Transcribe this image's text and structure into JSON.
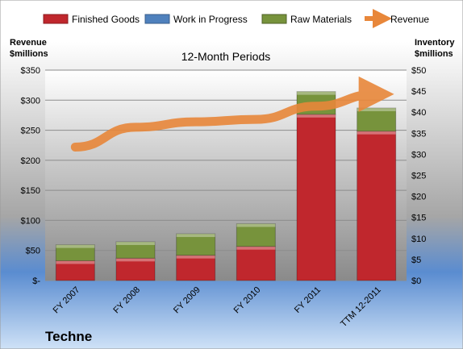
{
  "chart_data": {
    "type": "bar",
    "subtitle": "12-Month Periods",
    "company": "Techne",
    "left_axis_title": [
      "Revenue",
      "$millions"
    ],
    "right_axis_title": [
      "Inventory",
      "$millions"
    ],
    "categories": [
      "FY 2007",
      "FY 2008",
      "FY 2009",
      "FY 2010",
      "FY 2011",
      "TTM 12-2011"
    ],
    "left_ticks": [
      "$-",
      "$50",
      "$100",
      "$150",
      "$200",
      "$250",
      "$300",
      "$350"
    ],
    "right_ticks": [
      "$0",
      "$5",
      "$10",
      "$15",
      "$20",
      "$25",
      "$30",
      "$35",
      "$40",
      "$45",
      "$50"
    ],
    "left_ylim": [
      0,
      350
    ],
    "right_ylim": [
      0,
      50
    ],
    "legend_position": "top",
    "series": [
      {
        "name": "Finished Goods",
        "axis": "right",
        "kind": "stacked-bar",
        "color": "#c0272d",
        "values": [
          4.7,
          5.3,
          6.0,
          8.1,
          39.5,
          35.5
        ]
      },
      {
        "name": "Work in Progress",
        "axis": "right",
        "kind": "stacked-bar",
        "color": "#4f81bd",
        "values": [
          0,
          0,
          0,
          0,
          0,
          0
        ]
      },
      {
        "name": "Raw Materials",
        "axis": "right",
        "kind": "stacked-bar",
        "color": "#77933c",
        "values": [
          3.8,
          3.9,
          5.1,
          5.4,
          5.4,
          5.5
        ]
      },
      {
        "name": "Revenue",
        "axis": "left",
        "kind": "line",
        "color": "#e8873a",
        "values": [
          222,
          255,
          264,
          268,
          290,
          310
        ]
      }
    ]
  }
}
